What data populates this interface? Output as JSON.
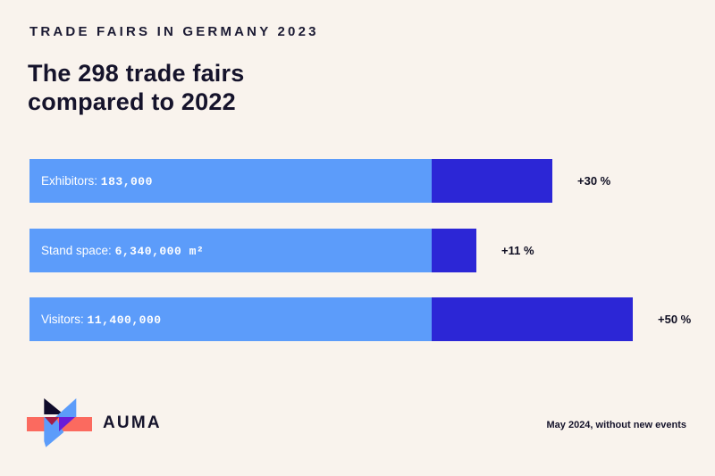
{
  "page": {
    "background_color": "#F9F3ED",
    "accent_light_blue": "#5C9CFA",
    "accent_dark_blue": "#2C26D6",
    "text_navy": "#15132B"
  },
  "header": {
    "kicker": "TRADE FAIRS IN GERMANY 2023",
    "title_line1": "The 298 trade fairs",
    "title_line2": "compared to 2022"
  },
  "chart_data": {
    "type": "bar",
    "orientation": "horizontal",
    "title": "The 298 trade fairs compared to 2022",
    "subtitle": "TRADE FAIRS IN GERMANY 2023",
    "categories": [
      "Exhibitors",
      "Stand space",
      "Visitors"
    ],
    "values_2023": [
      183000,
      6340000,
      11400000
    ],
    "value_units": [
      "",
      "m²",
      ""
    ],
    "change_vs_2022_percent": [
      30,
      11,
      50
    ],
    "legend": "light blue = 2023 value, dark blue = increase vs 2022",
    "note": "May 2024, without new events",
    "axis": "none",
    "grid": false
  },
  "bars": [
    {
      "label": "Exhibitors:",
      "value": "183,000",
      "pct": 30,
      "pct_label": "+30 %"
    },
    {
      "label": "Stand space:",
      "value": "6,340,000 m²",
      "pct": 11,
      "pct_label": "+11 %"
    },
    {
      "label": "Visitors:",
      "value": "11,400,000",
      "pct": 50,
      "pct_label": "+50 %"
    }
  ],
  "footer": {
    "brand": "AUMA",
    "note": "May 2024, without new events"
  },
  "logo_colors": {
    "salmon": "#FB6A5F",
    "black": "#100B2A",
    "crimson": "#A51E44",
    "blue": "#5C9CFA",
    "purple": "#6A1BD8"
  }
}
